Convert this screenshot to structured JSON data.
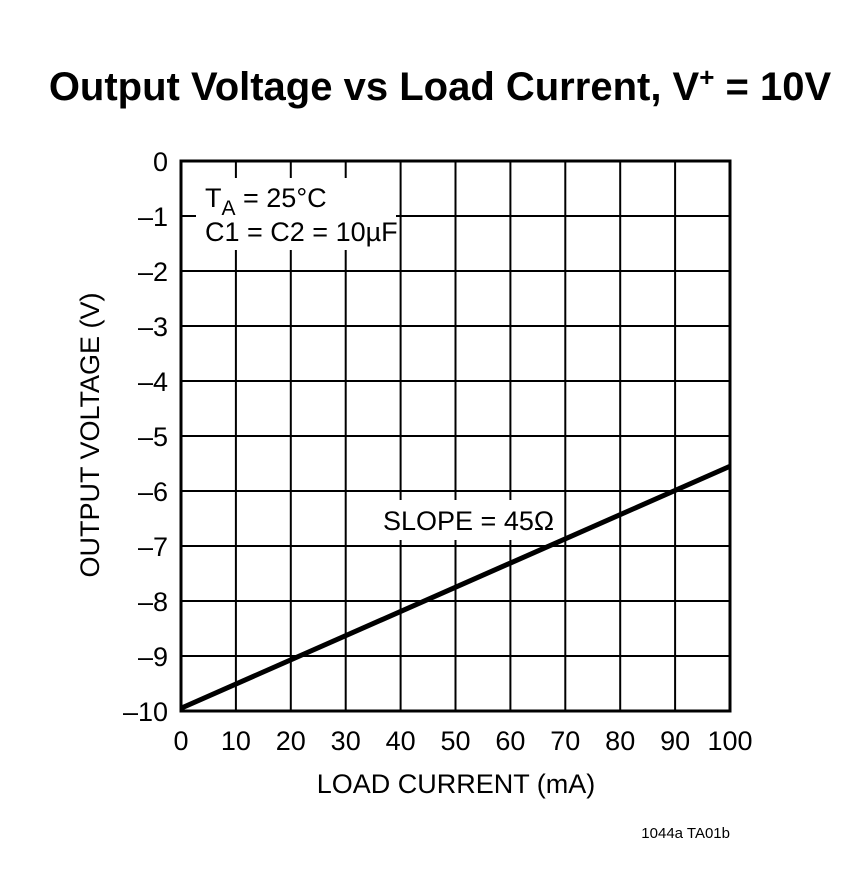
{
  "figure_id": "1044a TA01b",
  "chart_data": {
    "type": "line",
    "title": "Output Voltage vs Load Current, V",
    "title_superscript": "+",
    "title_suffix": " = 10V",
    "xlabel": "LOAD CURRENT (mA)",
    "ylabel": "OUTPUT VOLTAGE (V)",
    "xlim": [
      0,
      100
    ],
    "ylim": [
      -10,
      0
    ],
    "x_ticks": [
      0,
      10,
      20,
      30,
      40,
      50,
      60,
      70,
      80,
      90,
      100
    ],
    "x_tick_labels": [
      "0",
      "10",
      "20",
      "30",
      "40",
      "50",
      "60",
      "70",
      "80",
      "90",
      "100"
    ],
    "y_ticks": [
      0,
      -1,
      -2,
      -3,
      -4,
      -5,
      -6,
      -7,
      -8,
      -9,
      -10
    ],
    "y_tick_labels": [
      "0",
      "–1",
      "–2",
      "–3",
      "–4",
      "–5",
      "–6",
      "–7",
      "–8",
      "–9",
      "–10"
    ],
    "grid": true,
    "series": [
      {
        "x": [
          0,
          100
        ],
        "y": [
          -9.95,
          -5.55
        ]
      }
    ],
    "annotations": {
      "condition_t_main": "T",
      "condition_t_sub": "A",
      "condition_t_rest": " = 25°C",
      "condition_cap": "C1 = C2 = 10µF",
      "slope": "SLOPE = 45Ω"
    }
  }
}
